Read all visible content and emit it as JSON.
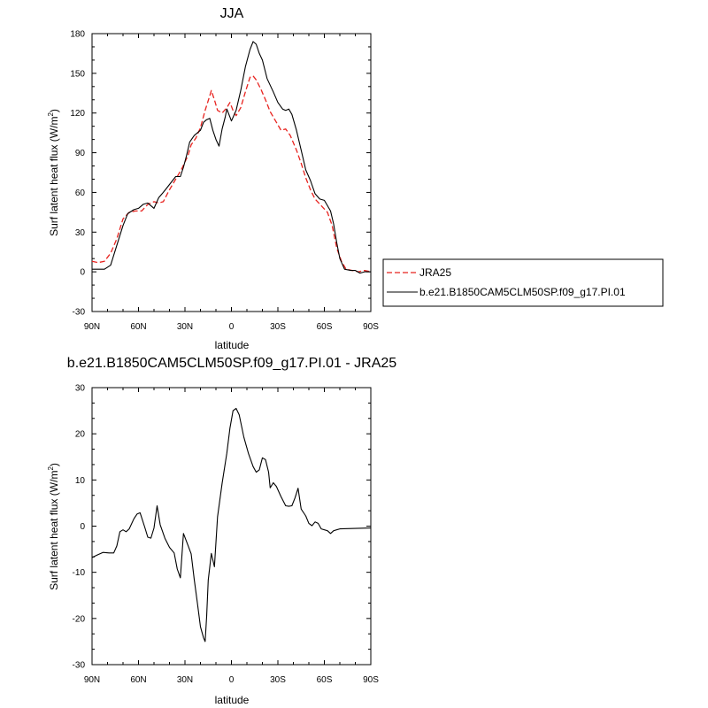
{
  "chart_data": [
    {
      "type": "line",
      "title": "JJA",
      "xlabel": "latitude",
      "ylabel": "Surf latent heat flux (W/m",
      "ylabel_sup": "2",
      "ylabel_close": ")",
      "xlim": [
        90,
        -90
      ],
      "ylim": [
        -30,
        180
      ],
      "yticks": [
        -30,
        0,
        30,
        60,
        90,
        120,
        150,
        180
      ],
      "xticks": [
        {
          "value": 90,
          "label": "90N"
        },
        {
          "value": 60,
          "label": "60N"
        },
        {
          "value": 30,
          "label": "30N"
        },
        {
          "value": 0,
          "label": "0"
        },
        {
          "value": -30,
          "label": "30S"
        },
        {
          "value": -60,
          "label": "60S"
        },
        {
          "value": -90,
          "label": "90S"
        }
      ],
      "legend": "right",
      "series": [
        {
          "name": "JRA25",
          "color": "#e8231f",
          "dash": true,
          "points": [
            [
              90,
              8
            ],
            [
              86,
              7
            ],
            [
              82,
              8
            ],
            [
              78,
              14
            ],
            [
              74,
              25
            ],
            [
              70,
              40
            ],
            [
              66,
              45
            ],
            [
              62,
              46
            ],
            [
              58,
              46
            ],
            [
              54,
              51
            ],
            [
              50,
              53
            ],
            [
              47,
              52
            ],
            [
              44,
              53
            ],
            [
              40,
              62
            ],
            [
              36,
              70
            ],
            [
              32,
              78
            ],
            [
              28,
              88
            ],
            [
              26,
              96
            ],
            [
              23,
              101
            ],
            [
              20,
              109
            ],
            [
              17,
              122
            ],
            [
              14,
              133
            ],
            [
              13,
              137
            ],
            [
              11,
              130
            ],
            [
              9,
              122
            ],
            [
              6,
              120
            ],
            [
              3,
              124
            ],
            [
              1,
              128
            ],
            [
              -1,
              122
            ],
            [
              -3,
              118
            ],
            [
              -6,
              124
            ],
            [
              -9,
              136
            ],
            [
              -12,
              147
            ],
            [
              -14,
              148
            ],
            [
              -16,
              145
            ],
            [
              -19,
              138
            ],
            [
              -22,
              130
            ],
            [
              -25,
              121
            ],
            [
              -29,
              113
            ],
            [
              -32,
              107
            ],
            [
              -35,
              108
            ],
            [
              -38,
              103
            ],
            [
              -42,
              92
            ],
            [
              -45,
              82
            ],
            [
              -48,
              71
            ],
            [
              -51,
              62
            ],
            [
              -54,
              55
            ],
            [
              -58,
              50
            ],
            [
              -62,
              45
            ],
            [
              -65,
              35
            ],
            [
              -68,
              18
            ],
            [
              -71,
              8
            ],
            [
              -74,
              2
            ],
            [
              -78,
              1
            ],
            [
              -82,
              0
            ],
            [
              -86,
              1
            ],
            [
              -90,
              0
            ]
          ]
        },
        {
          "name": "b.e21.B1850CAM5CLM50SP.f09_g17.PI.01",
          "color": "#000000",
          "dash": false,
          "points": [
            [
              90,
              2
            ],
            [
              86,
              2
            ],
            [
              82,
              2
            ],
            [
              78,
              5
            ],
            [
              74,
              20
            ],
            [
              70,
              35
            ],
            [
              67,
              44
            ],
            [
              63,
              47
            ],
            [
              60,
              48
            ],
            [
              57,
              51
            ],
            [
              54,
              52
            ],
            [
              50,
              48
            ],
            [
              47,
              56
            ],
            [
              44,
              60
            ],
            [
              40,
              66
            ],
            [
              36,
              72
            ],
            [
              33,
              72
            ],
            [
              31,
              79
            ],
            [
              29,
              88
            ],
            [
              27,
              98
            ],
            [
              24,
              103
            ],
            [
              20,
              107
            ],
            [
              18,
              113
            ],
            [
              16,
              115
            ],
            [
              14,
              116
            ],
            [
              12,
              107
            ],
            [
              10,
              100
            ],
            [
              8,
              95
            ],
            [
              6,
              108
            ],
            [
              4,
              117
            ],
            [
              3,
              123
            ],
            [
              1,
              117
            ],
            [
              0,
              114
            ],
            [
              -3,
              122
            ],
            [
              -6,
              137
            ],
            [
              -9,
              155
            ],
            [
              -12,
              168
            ],
            [
              -14,
              174
            ],
            [
              -16,
              172
            ],
            [
              -18,
              165
            ],
            [
              -20,
              160
            ],
            [
              -23,
              146
            ],
            [
              -27,
              136
            ],
            [
              -30,
              128
            ],
            [
              -33,
              123
            ],
            [
              -35,
              122
            ],
            [
              -37,
              123
            ],
            [
              -39,
              119
            ],
            [
              -42,
              107
            ],
            [
              -45,
              92
            ],
            [
              -48,
              77
            ],
            [
              -51,
              69
            ],
            [
              -54,
              59
            ],
            [
              -57,
              55
            ],
            [
              -60,
              54
            ],
            [
              -62,
              50
            ],
            [
              -64,
              46
            ],
            [
              -66,
              36
            ],
            [
              -68,
              22
            ],
            [
              -70,
              10
            ],
            [
              -73,
              2
            ],
            [
              -77,
              1
            ],
            [
              -80,
              1
            ],
            [
              -83,
              -1
            ],
            [
              -86,
              0
            ],
            [
              -88,
              0
            ],
            [
              -90,
              0
            ]
          ]
        }
      ]
    },
    {
      "type": "line",
      "title": "b.e21.B1850CAM5CLM50SP.f09_g17.PI.01 - JRA25",
      "xlabel": "latitude",
      "ylabel": "Surf latent heat flux (W/m",
      "ylabel_sup": "2",
      "ylabel_close": ")",
      "xlim": [
        90,
        -90
      ],
      "ylim": [
        -30,
        30
      ],
      "yticks": [
        -30,
        -20,
        -10,
        0,
        10,
        20,
        30
      ],
      "xticks": [
        {
          "value": 90,
          "label": "90N"
        },
        {
          "value": 60,
          "label": "60N"
        },
        {
          "value": 30,
          "label": "30N"
        },
        {
          "value": 0,
          "label": "0"
        },
        {
          "value": -30,
          "label": "30S"
        },
        {
          "value": -60,
          "label": "60S"
        },
        {
          "value": -90,
          "label": "90S"
        }
      ],
      "series": [
        {
          "color": "#000000",
          "dash": false,
          "points": [
            [
              90,
              -6.8
            ],
            [
              87,
              -6.3
            ],
            [
              83,
              -5.7
            ],
            [
              79,
              -5.8
            ],
            [
              76,
              -5.8
            ],
            [
              74,
              -4.3
            ],
            [
              72,
              -1.2
            ],
            [
              70,
              -0.8
            ],
            [
              68,
              -1.2
            ],
            [
              66,
              -0.6
            ],
            [
              63,
              1.6
            ],
            [
              61,
              2.6
            ],
            [
              59,
              2.9
            ],
            [
              56,
              -0.2
            ],
            [
              54,
              -2.4
            ],
            [
              52,
              -2.6
            ],
            [
              50,
              -0.4
            ],
            [
              48,
              4.4
            ],
            [
              46,
              0.3
            ],
            [
              43,
              -2.6
            ],
            [
              40,
              -4.6
            ],
            [
              37,
              -5.8
            ],
            [
              35,
              -9.3
            ],
            [
              33,
              -11.2
            ],
            [
              31,
              -1.6
            ],
            [
              28,
              -4.2
            ],
            [
              26,
              -6.0
            ],
            [
              24,
              -11.6
            ],
            [
              22,
              -16.6
            ],
            [
              20,
              -21.8
            ],
            [
              18,
              -24.2
            ],
            [
              17,
              -25.0
            ],
            [
              16,
              -19.6
            ],
            [
              15,
              -11.7
            ],
            [
              13,
              -5.9
            ],
            [
              11,
              -8.8
            ],
            [
              9,
              2.0
            ],
            [
              6,
              9.3
            ],
            [
              3,
              15.8
            ],
            [
              1,
              21.2
            ],
            [
              -1,
              25.0
            ],
            [
              -3,
              25.5
            ],
            [
              -5,
              24.1
            ],
            [
              -8,
              19.3
            ],
            [
              -11,
              15.7
            ],
            [
              -14,
              12.9
            ],
            [
              -16,
              11.7
            ],
            [
              -18,
              12.2
            ],
            [
              -20,
              14.8
            ],
            [
              -22,
              14.4
            ],
            [
              -24,
              11.7
            ],
            [
              -25,
              8.3
            ],
            [
              -27,
              9.4
            ],
            [
              -29,
              8.6
            ],
            [
              -32,
              6.4
            ],
            [
              -35,
              4.4
            ],
            [
              -37,
              4.3
            ],
            [
              -39,
              4.4
            ],
            [
              -41,
              6.1
            ],
            [
              -43,
              8.2
            ],
            [
              -45,
              3.7
            ],
            [
              -48,
              2.2
            ],
            [
              -50,
              0.6
            ],
            [
              -52,
              0.1
            ],
            [
              -54,
              0.9
            ],
            [
              -56,
              0.6
            ],
            [
              -58,
              -0.6
            ],
            [
              -62,
              -1.0
            ],
            [
              -64,
              -1.6
            ],
            [
              -66,
              -1.0
            ],
            [
              -70,
              -0.6
            ],
            [
              -90,
              -0.4
            ]
          ]
        }
      ]
    }
  ]
}
